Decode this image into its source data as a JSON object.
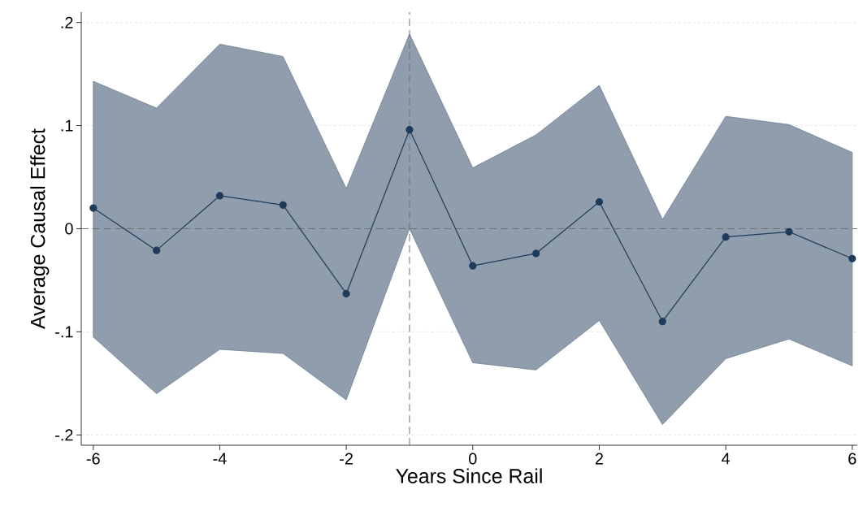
{
  "chart_data": {
    "type": "line",
    "xlabel": "Years Since Rail",
    "ylabel": "Average Causal Effect",
    "x": [
      -6,
      -5,
      -4,
      -3,
      -2,
      -1,
      0,
      1,
      2,
      3,
      4,
      5,
      6
    ],
    "series": [
      {
        "color": "#1f3b5a",
        "values": [
          0.02,
          -0.021,
          0.032,
          0.023,
          -0.063,
          0.096,
          -0.036,
          -0.024,
          0.026,
          -0.09,
          -0.008,
          -0.003,
          -0.029
        ],
        "lower": [
          -0.105,
          -0.16,
          -0.117,
          -0.121,
          -0.166,
          0.0,
          -0.13,
          -0.137,
          -0.089,
          -0.19,
          -0.126,
          -0.107,
          -0.133
        ],
        "upper": [
          0.143,
          0.117,
          0.179,
          0.167,
          0.039,
          0.189,
          0.059,
          0.091,
          0.139,
          0.009,
          0.109,
          0.101,
          0.074
        ]
      }
    ],
    "xlim": [
      -6.19,
      6.08
    ],
    "ylim": [
      -0.21,
      0.21
    ],
    "xticks": [
      -6,
      -4,
      -2,
      0,
      2,
      4,
      6
    ],
    "yticks": [
      {
        "value": -0.2,
        "label": "-.2"
      },
      {
        "value": -0.1,
        "label": "-.1"
      },
      0,
      {
        "value": 0.1,
        "label": ".1"
      },
      {
        "value": 0.2,
        "label": ".2"
      }
    ],
    "ref_lines": [
      {
        "axis": "y",
        "value": 0,
        "color": "#707070",
        "line_style": "dashed"
      },
      {
        "axis": "x",
        "value": -1,
        "color": "#707070",
        "line_style": "dashed"
      }
    ],
    "grid": "y",
    "marker": "circle",
    "line_style": "solid"
  }
}
